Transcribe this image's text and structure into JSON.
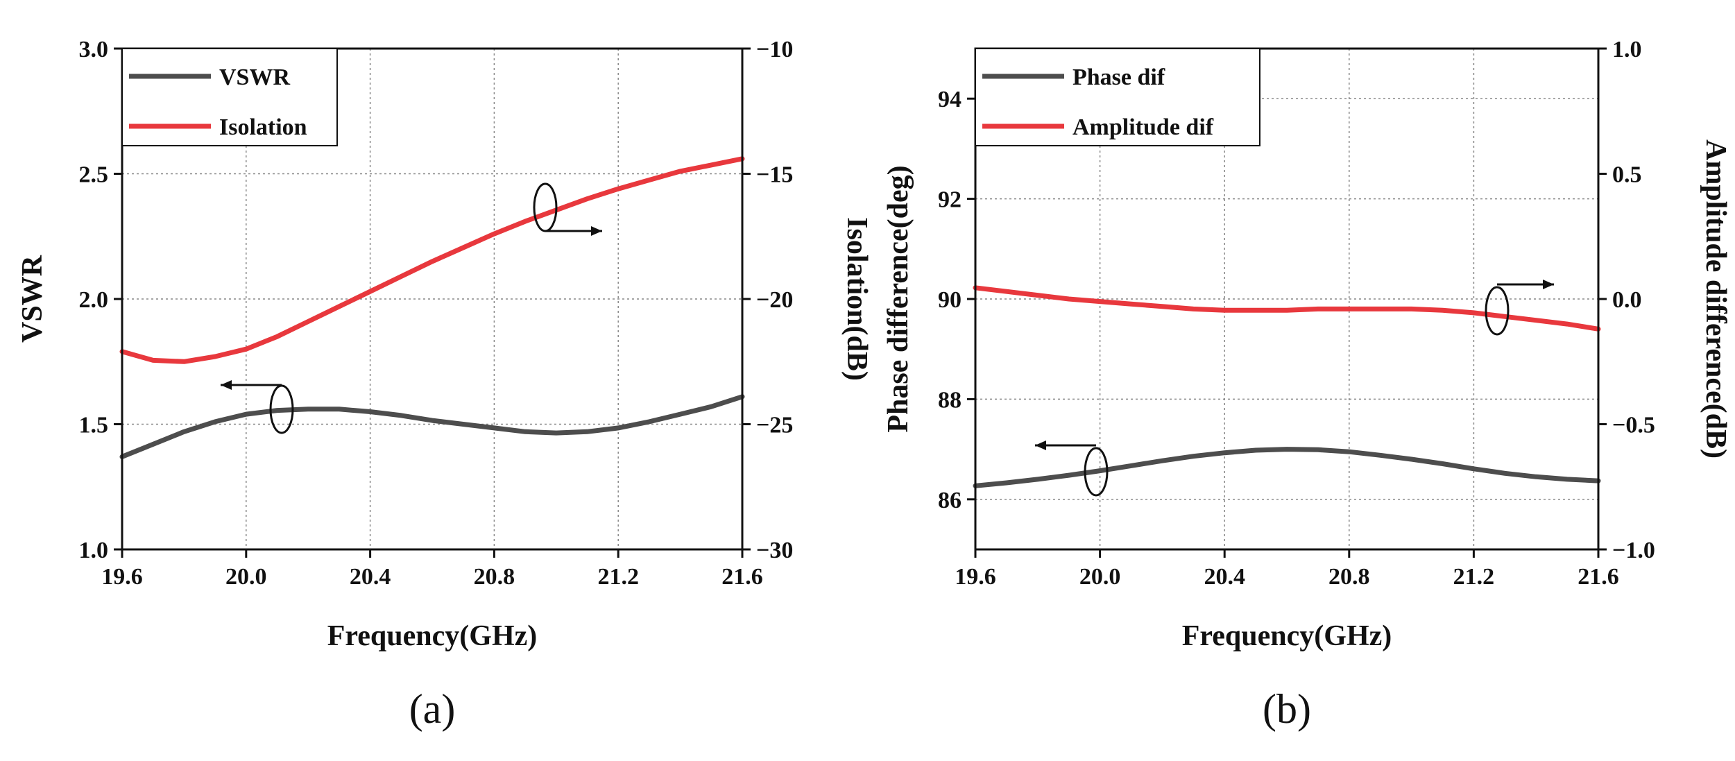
{
  "chart_data": [
    {
      "id": "a",
      "type": "line",
      "caption": "(a)",
      "xlabel": "Frequency(GHz)",
      "ylabel_left": "VSWR",
      "ylabel_right": "Isolation(dB)",
      "xlim": [
        19.6,
        21.6
      ],
      "ylim_left": [
        1.0,
        3.0
      ],
      "ylim_right": [
        -30,
        -10
      ],
      "xticks": [
        "19.6",
        "20.0",
        "20.4",
        "20.8",
        "21.2",
        "21.6"
      ],
      "yticks_left": [
        "1.0",
        "1.5",
        "2.0",
        "2.5",
        "3.0"
      ],
      "yticks_right": [
        "−30",
        "−25",
        "−20",
        "−15",
        "−10"
      ],
      "grid": true,
      "legend_position": "top-left",
      "series": [
        {
          "name": "VSWR",
          "axis": "left",
          "color": "#4d4d4d",
          "x": [
            19.6,
            19.7,
            19.8,
            19.9,
            20.0,
            20.1,
            20.2,
            20.3,
            20.4,
            20.5,
            20.6,
            20.7,
            20.8,
            20.9,
            21.0,
            21.1,
            21.2,
            21.3,
            21.4,
            21.5,
            21.6
          ],
          "y": [
            1.37,
            1.42,
            1.47,
            1.51,
            1.54,
            1.555,
            1.56,
            1.56,
            1.55,
            1.535,
            1.515,
            1.5,
            1.485,
            1.47,
            1.465,
            1.47,
            1.485,
            1.51,
            1.54,
            1.57,
            1.61
          ]
        },
        {
          "name": "Isolation",
          "axis": "right",
          "color": "#e8383d",
          "x": [
            19.6,
            19.7,
            19.8,
            19.9,
            20.0,
            20.1,
            20.2,
            20.3,
            20.4,
            20.5,
            20.6,
            20.7,
            20.8,
            20.9,
            21.0,
            21.1,
            21.2,
            21.3,
            21.4,
            21.5,
            21.6
          ],
          "y": [
            -22.1,
            -22.45,
            -22.5,
            -22.3,
            -22.0,
            -21.5,
            -20.9,
            -20.3,
            -19.7,
            -19.1,
            -18.5,
            -17.95,
            -17.4,
            -16.9,
            -16.45,
            -16.0,
            -15.6,
            -15.25,
            -14.9,
            -14.65,
            -14.4
          ]
        }
      ],
      "annotations": [
        {
          "target_axis": "right",
          "direction": "right"
        },
        {
          "target_axis": "left",
          "direction": "left"
        }
      ]
    },
    {
      "id": "b",
      "type": "line",
      "caption": "(b)",
      "xlabel": "Frequency(GHz)",
      "ylabel_left": "Phase difference(deg)",
      "ylabel_right": "Amplitude difference(dB)",
      "xlim": [
        19.6,
        21.6
      ],
      "ylim_left": [
        85,
        95
      ],
      "ylim_right": [
        -1.0,
        1.0
      ],
      "xticks": [
        "19.6",
        "20.0",
        "20.4",
        "20.8",
        "21.2",
        "21.6"
      ],
      "yticks_left": [
        "86",
        "88",
        "90",
        "92",
        "94"
      ],
      "yticks_left_values": [
        86,
        88,
        90,
        92,
        94
      ],
      "yticks_right": [
        "−1.0",
        "−0.5",
        "0.0",
        "0.5",
        "1.0"
      ],
      "grid": true,
      "legend_position": "top-left",
      "series": [
        {
          "name": "Phase dif",
          "axis": "left",
          "color": "#4d4d4d",
          "x": [
            19.6,
            19.7,
            19.8,
            19.9,
            20.0,
            20.1,
            20.2,
            20.3,
            20.4,
            20.5,
            20.6,
            20.7,
            20.8,
            20.9,
            21.0,
            21.1,
            21.2,
            21.3,
            21.4,
            21.5,
            21.6
          ],
          "y": [
            86.27,
            86.33,
            86.4,
            86.48,
            86.57,
            86.67,
            86.77,
            86.86,
            86.93,
            86.98,
            87.0,
            86.99,
            86.95,
            86.88,
            86.8,
            86.71,
            86.61,
            86.52,
            86.45,
            86.4,
            86.37
          ]
        },
        {
          "name": "Amplitude dif",
          "axis": "right",
          "color": "#e8383d",
          "x": [
            19.6,
            19.7,
            19.8,
            19.9,
            20.0,
            20.1,
            20.2,
            20.3,
            20.4,
            20.5,
            20.6,
            20.7,
            20.8,
            20.9,
            21.0,
            21.1,
            21.2,
            21.3,
            21.4,
            21.5,
            21.6
          ],
          "y": [
            0.045,
            0.03,
            0.015,
            0.0,
            -0.01,
            -0.02,
            -0.03,
            -0.04,
            -0.045,
            -0.045,
            -0.045,
            -0.04,
            -0.04,
            -0.04,
            -0.04,
            -0.045,
            -0.055,
            -0.07,
            -0.085,
            -0.1,
            -0.12
          ]
        }
      ],
      "annotations": [
        {
          "target_axis": "right",
          "direction": "right"
        },
        {
          "target_axis": "left",
          "direction": "left"
        }
      ]
    }
  ]
}
